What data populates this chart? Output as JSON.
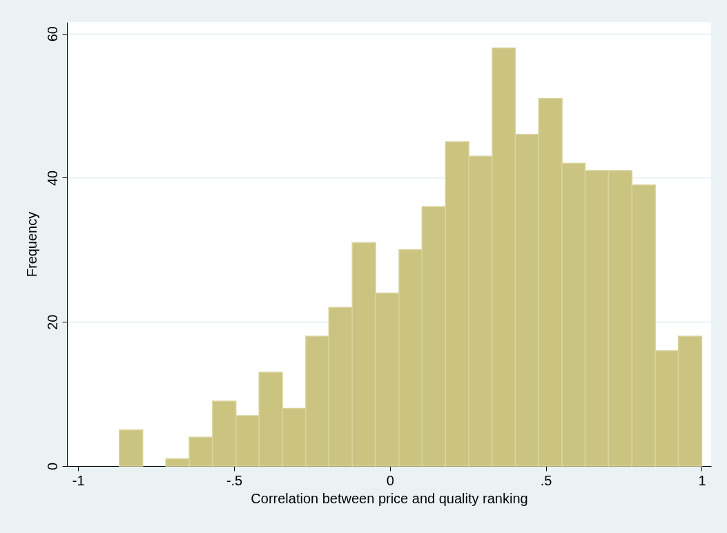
{
  "chart_data": {
    "type": "histogram",
    "xlabel": "Correlation between price and quality ranking",
    "ylabel": "Frequency",
    "bins": [
      -0.868,
      -0.793,
      -0.719,
      -0.644,
      -0.569,
      -0.494,
      -0.42,
      -0.345,
      -0.27,
      -0.196,
      -0.121,
      -0.046,
      0.029,
      0.103,
      0.178,
      0.253,
      0.328,
      0.402,
      0.477,
      0.552,
      0.626,
      0.701,
      0.776,
      0.851,
      0.925,
      1.0
    ],
    "values": [
      5,
      0,
      1,
      4,
      9,
      7,
      13,
      8,
      18,
      22,
      31,
      24,
      30,
      36,
      45,
      43,
      58,
      46,
      51,
      42,
      41,
      41,
      39,
      16,
      18
    ],
    "color": "#cbc380",
    "xlim": [
      -1.036,
      1.03
    ],
    "ylim": [
      0,
      61.6
    ],
    "xticks": [
      {
        "value": -1,
        "label": "-1"
      },
      {
        "value": -0.5,
        "label": "-.5"
      },
      0,
      {
        "value": 0.5,
        "label": ".5"
      },
      1
    ],
    "yticks": [
      0,
      20,
      40,
      60
    ],
    "grid": "y"
  }
}
